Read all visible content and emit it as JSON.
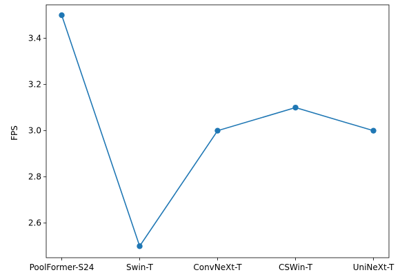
{
  "chart_data": {
    "type": "line",
    "title": "",
    "xlabel": "",
    "ylabel": "FPS",
    "categories": [
      "PoolFormer-S24",
      "Swin-T",
      "ConvNeXt-T",
      "CSWin-T",
      "UniNeXt-T"
    ],
    "series": [
      {
        "values": [
          3.5,
          2.5,
          3.0,
          3.1,
          3.0
        ]
      }
    ],
    "ylim": [
      2.45,
      3.545
    ],
    "yticks": [
      "2.6",
      "2.8",
      "3.0",
      "3.2",
      "3.4"
    ],
    "grid": false,
    "legend": "none",
    "colors": {
      "line": "#1f77b4",
      "marker": "#1f77b4",
      "axes": "#000000"
    }
  }
}
